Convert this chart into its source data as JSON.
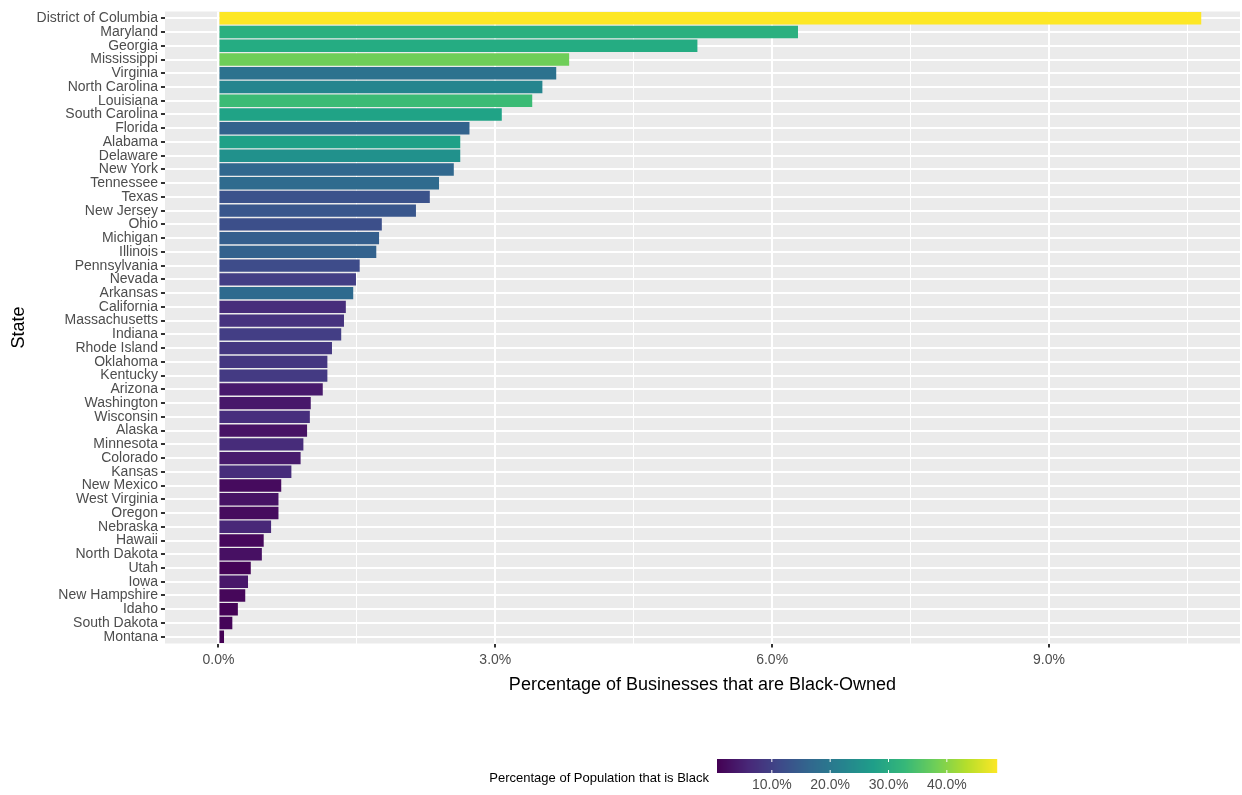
{
  "chart_data": {
    "type": "bar",
    "orientation": "horizontal",
    "xlabel": "Percentage of Businesses that are Black-Owned",
    "ylabel": "State",
    "clabel": "Percentage of Population that is Black",
    "categories": [
      "District of Columbia",
      "Maryland",
      "Georgia",
      "Mississippi",
      "Virginia",
      "North Carolina",
      "Louisiana",
      "South Carolina",
      "Florida",
      "Alabama",
      "Delaware",
      "New York",
      "Tennessee",
      "Texas",
      "New Jersey",
      "Ohio",
      "Michigan",
      "Illinois",
      "Pennsylvania",
      "Nevada",
      "Arkansas",
      "California",
      "Massachusetts",
      "Indiana",
      "Rhode Island",
      "Oklahoma",
      "Kentucky",
      "Arizona",
      "Washington",
      "Wisconsin",
      "Alaska",
      "Minnesota",
      "Colorado",
      "Kansas",
      "New Mexico",
      "West Virginia",
      "Oregon",
      "Nebraska",
      "Hawaii",
      "North Dakota",
      "Utah",
      "Iowa",
      "New Hampshire",
      "Idaho",
      "South Dakota",
      "Montana"
    ],
    "values": [
      10.65,
      6.28,
      5.19,
      3.8,
      3.66,
      3.51,
      3.4,
      3.07,
      2.72,
      2.62,
      2.62,
      2.55,
      2.39,
      2.29,
      2.14,
      1.77,
      1.74,
      1.71,
      1.53,
      1.49,
      1.46,
      1.38,
      1.36,
      1.33,
      1.23,
      1.18,
      1.18,
      1.13,
      1.0,
      0.99,
      0.96,
      0.92,
      0.89,
      0.79,
      0.68,
      0.65,
      0.65,
      0.57,
      0.49,
      0.47,
      0.35,
      0.32,
      0.29,
      0.21,
      0.15,
      0.06
    ],
    "colors": [
      "#fde725",
      "#2bb07f",
      "#25ac82",
      "#6ece58",
      "#2c728e",
      "#25858e",
      "#3bbb75",
      "#20a386",
      "#33638d",
      "#1fa187",
      "#21918c",
      "#31688e",
      "#2f6b8e",
      "#3b528b",
      "#39568c",
      "#3c4f8a",
      "#355f8d",
      "#33628d",
      "#3e4c8a",
      "#433e85",
      "#2e6a8e",
      "#472d7b",
      "#46337f",
      "#433e85",
      "#453781",
      "#453781",
      "#443a83",
      "#481a6c",
      "#48186a",
      "#472f7d",
      "#471365",
      "#472c7a",
      "#481b6d",
      "#472d7b",
      "#460b5e",
      "#471365",
      "#460b5e",
      "#482878",
      "#46085c",
      "#471063",
      "#450457",
      "#48186a",
      "#46075a",
      "#440256",
      "#450559",
      "#440154"
    ],
    "xlim": [
      -0.58,
      11.07
    ],
    "xticks": [
      {
        "value": 0,
        "label": "0.0%"
      },
      {
        "value": 1.5,
        "label": null
      },
      {
        "value": 3,
        "label": "3.0%"
      },
      {
        "value": 4.5,
        "label": null
      },
      {
        "value": 6,
        "label": "6.0%"
      },
      {
        "value": 7.5,
        "label": null
      },
      {
        "value": 9,
        "label": "9.0%"
      },
      {
        "value": 10.5,
        "label": null
      }
    ],
    "clim": [
      0.6,
      48.6
    ],
    "cticks": [
      {
        "value": 10,
        "label": "10.0%"
      },
      {
        "value": 20,
        "label": "20.0%"
      },
      {
        "value": 30,
        "label": "30.0%"
      },
      {
        "value": 40,
        "label": "40.0%"
      }
    ],
    "grid": true
  }
}
